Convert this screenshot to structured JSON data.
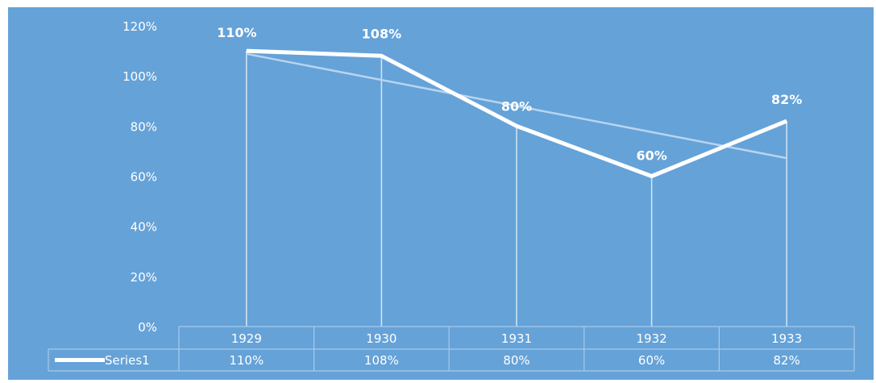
{
  "chart_data": {
    "type": "line",
    "categories": [
      "1929",
      "1930",
      "1931",
      "1932",
      "1933"
    ],
    "series": [
      {
        "name": "Series1",
        "values": [
          110,
          108,
          80,
          60,
          82
        ],
        "labels": [
          "110%",
          "108%",
          "80%",
          "60%",
          "82%"
        ]
      }
    ],
    "trendline": true,
    "drop_lines": true,
    "data_table": true,
    "y_ticks": [
      "0%",
      "20%",
      "40%",
      "60%",
      "80%",
      "100%",
      "120%"
    ],
    "ylim": [
      0,
      120
    ],
    "grid": false,
    "title": "",
    "xlabel": "",
    "ylabel": "",
    "colors": {
      "background": "#65a2d8",
      "line": "#ffffff",
      "trendline": "#b8d4ef",
      "text": "#ffffff",
      "table_border": "#a8caea"
    }
  }
}
